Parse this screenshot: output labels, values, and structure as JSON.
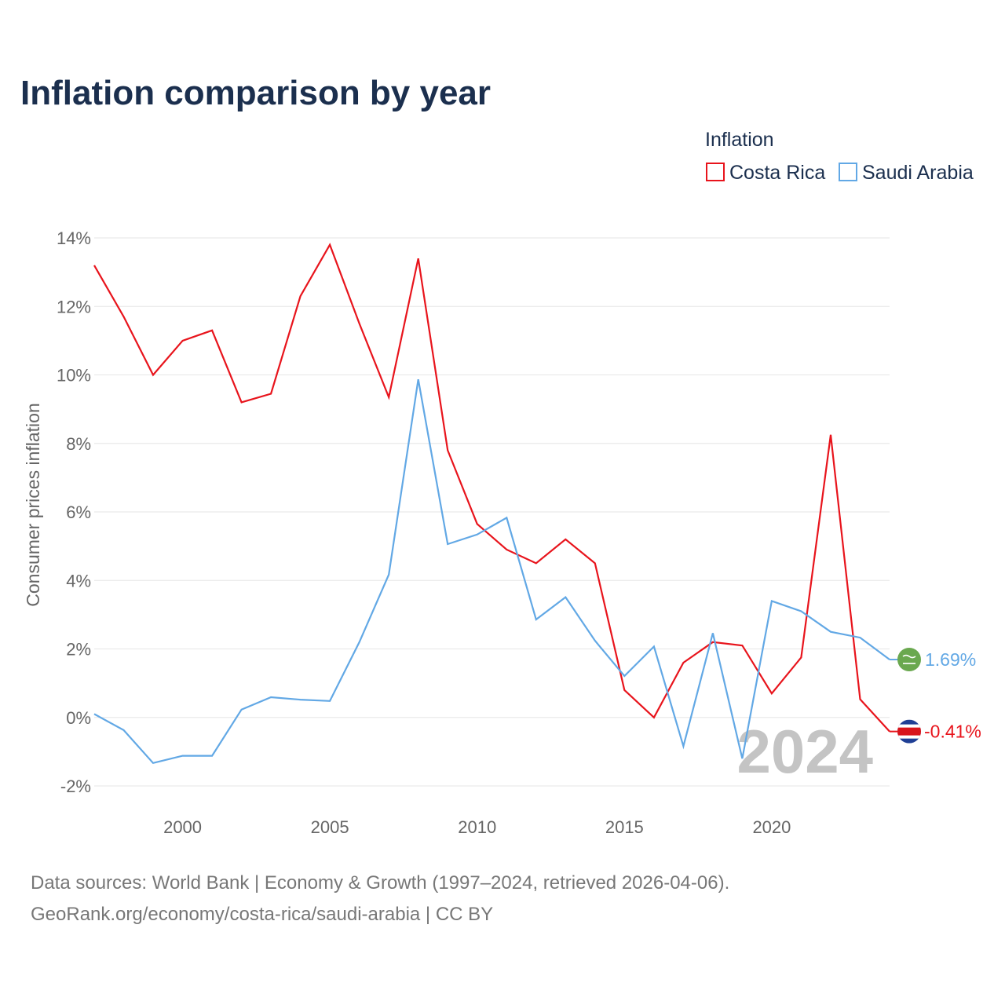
{
  "title": "Inflation comparison by year",
  "legend": {
    "title": "Inflation",
    "items": [
      {
        "name": "Costa Rica",
        "color": "#e8141c"
      },
      {
        "name": "Saudi Arabia",
        "color": "#62a8e5"
      }
    ]
  },
  "chart_data": {
    "type": "line",
    "title": "Inflation comparison by year",
    "ylabel": "Consumer prices inflation",
    "xlabel": "",
    "x": [
      1997,
      1998,
      1999,
      2000,
      2001,
      2002,
      2003,
      2004,
      2005,
      2006,
      2007,
      2008,
      2009,
      2010,
      2011,
      2012,
      2013,
      2014,
      2015,
      2016,
      2017,
      2018,
      2019,
      2020,
      2021,
      2022,
      2023,
      2024
    ],
    "xlim": [
      1997,
      2024
    ],
    "ylim": [
      -2,
      14
    ],
    "yticks": [
      -2,
      0,
      2,
      4,
      6,
      8,
      10,
      12,
      14
    ],
    "ytick_labels": [
      "-2%",
      "0%",
      "2%",
      "4%",
      "6%",
      "8%",
      "10%",
      "12%",
      "14%"
    ],
    "xticks": [
      2000,
      2005,
      2010,
      2015,
      2020
    ],
    "xtick_labels": [
      "2000",
      "2005",
      "2010",
      "2015",
      "2020"
    ],
    "series": [
      {
        "name": "Costa Rica",
        "color": "#e8141c",
        "values": [
          13.2,
          11.7,
          10.0,
          11.0,
          11.3,
          9.2,
          9.45,
          12.3,
          13.8,
          11.5,
          9.35,
          13.4,
          7.8,
          5.65,
          4.9,
          4.5,
          5.2,
          4.5,
          0.8,
          0.0,
          1.6,
          2.2,
          2.1,
          0.7,
          1.75,
          8.25,
          0.53,
          -0.41
        ],
        "end_label": "-0.41%"
      },
      {
        "name": "Saudi Arabia",
        "color": "#62a8e5",
        "values": [
          0.1,
          -0.37,
          -1.33,
          -1.12,
          -1.12,
          0.23,
          0.59,
          0.52,
          0.48,
          2.2,
          4.17,
          9.87,
          5.06,
          5.34,
          5.83,
          2.86,
          3.51,
          2.24,
          1.21,
          2.07,
          -0.84,
          2.46,
          -1.2,
          3.4,
          3.1,
          2.5,
          2.33,
          1.69
        ],
        "end_label": "1.69%"
      }
    ],
    "year_watermark": "2024"
  },
  "source": {
    "line1": "Data sources: World Bank | Economy & Growth (1997–2024, retrieved 2026-04-06).",
    "line2": "GeoRank.org/economy/costa-rica/saudi-arabia | CC BY"
  }
}
